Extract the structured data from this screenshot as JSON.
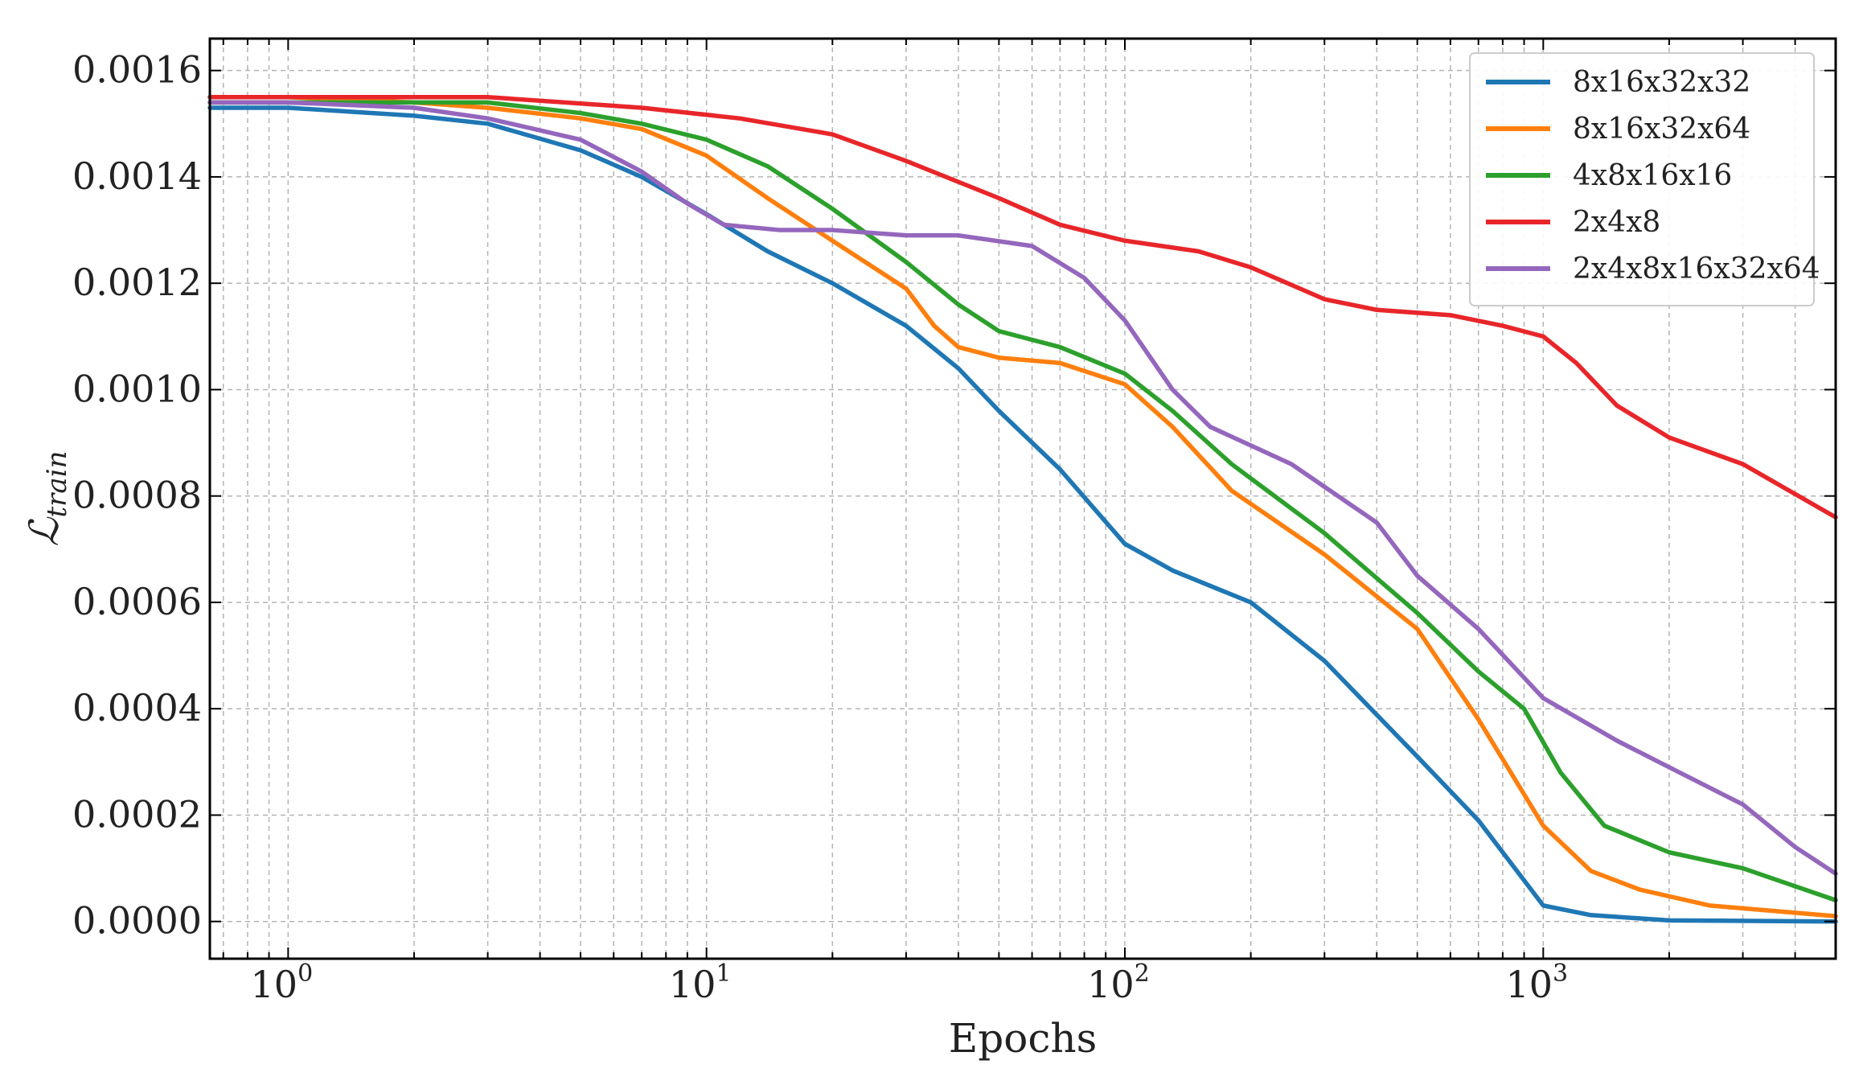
{
  "chart_data": {
    "type": "line",
    "title": "",
    "xlabel": "Epochs",
    "ylabel_main": "ℒ",
    "ylabel_sub": "train",
    "xscale": "log",
    "xlim": [
      0.65,
      5000
    ],
    "ylim": [
      -7e-05,
      0.00166
    ],
    "grid": true,
    "legend_position": "top-right",
    "x_ticks": [
      {
        "value": 1,
        "base": "10",
        "exp": "0"
      },
      {
        "value": 10,
        "base": "10",
        "exp": "1"
      },
      {
        "value": 100,
        "base": "10",
        "exp": "2"
      },
      {
        "value": 1000,
        "base": "10",
        "exp": "3"
      }
    ],
    "y_ticks": [
      {
        "value": 0.0,
        "label": "0.0000"
      },
      {
        "value": 0.0002,
        "label": "0.0002"
      },
      {
        "value": 0.0004,
        "label": "0.0004"
      },
      {
        "value": 0.0006,
        "label": "0.0006"
      },
      {
        "value": 0.0008,
        "label": "0.0008"
      },
      {
        "value": 0.001,
        "label": "0.0010"
      },
      {
        "value": 0.0012,
        "label": "0.0012"
      },
      {
        "value": 0.0014,
        "label": "0.0014"
      },
      {
        "value": 0.0016,
        "label": "0.0016"
      }
    ],
    "series": [
      {
        "name": "8x16x32x32",
        "color": "#1f77b4",
        "points": [
          [
            0.65,
            0.00153
          ],
          [
            1,
            0.00153
          ],
          [
            2,
            0.001515
          ],
          [
            3,
            0.0015
          ],
          [
            5,
            0.00145
          ],
          [
            7,
            0.0014
          ],
          [
            10,
            0.00133
          ],
          [
            14,
            0.00126
          ],
          [
            20,
            0.0012
          ],
          [
            30,
            0.00112
          ],
          [
            40,
            0.00104
          ],
          [
            50,
            0.00096
          ],
          [
            70,
            0.00085
          ],
          [
            100,
            0.00071
          ],
          [
            130,
            0.00066
          ],
          [
            200,
            0.0006
          ],
          [
            300,
            0.00049
          ],
          [
            500,
            0.00031
          ],
          [
            700,
            0.00019
          ],
          [
            1000,
            3e-05
          ],
          [
            1300,
            1.2e-05
          ],
          [
            2000,
            2e-06
          ],
          [
            5000,
            0.0
          ]
        ]
      },
      {
        "name": "8x16x32x64",
        "color": "#ff7f0e",
        "points": [
          [
            0.65,
            0.00155
          ],
          [
            1,
            0.00155
          ],
          [
            2,
            0.00154
          ],
          [
            3,
            0.00153
          ],
          [
            5,
            0.00151
          ],
          [
            7,
            0.00149
          ],
          [
            10,
            0.00144
          ],
          [
            14,
            0.00136
          ],
          [
            20,
            0.00128
          ],
          [
            30,
            0.00119
          ],
          [
            35,
            0.00112
          ],
          [
            40,
            0.00108
          ],
          [
            50,
            0.00106
          ],
          [
            70,
            0.00105
          ],
          [
            100,
            0.00101
          ],
          [
            130,
            0.00093
          ],
          [
            180,
            0.00081
          ],
          [
            300,
            0.00069
          ],
          [
            500,
            0.00055
          ],
          [
            700,
            0.00038
          ],
          [
            1000,
            0.00018
          ],
          [
            1300,
            9.5e-05
          ],
          [
            1700,
            6e-05
          ],
          [
            2500,
            3e-05
          ],
          [
            5000,
            1e-05
          ]
        ]
      },
      {
        "name": "4x8x16x16",
        "color": "#2ca02c",
        "points": [
          [
            0.65,
            0.00154
          ],
          [
            1,
            0.00154
          ],
          [
            2,
            0.00154
          ],
          [
            3,
            0.00154
          ],
          [
            5,
            0.00152
          ],
          [
            7,
            0.0015
          ],
          [
            10,
            0.00147
          ],
          [
            14,
            0.00142
          ],
          [
            20,
            0.00134
          ],
          [
            30,
            0.00124
          ],
          [
            40,
            0.00116
          ],
          [
            50,
            0.00111
          ],
          [
            70,
            0.00108
          ],
          [
            100,
            0.00103
          ],
          [
            130,
            0.00096
          ],
          [
            180,
            0.00086
          ],
          [
            300,
            0.00073
          ],
          [
            500,
            0.00058
          ],
          [
            700,
            0.00047
          ],
          [
            900,
            0.0004
          ],
          [
            1100,
            0.00028
          ],
          [
            1400,
            0.00018
          ],
          [
            2000,
            0.00013
          ],
          [
            3000,
            0.0001
          ],
          [
            5000,
            4e-05
          ]
        ]
      },
      {
        "name": "2x4x8",
        "color": "#e8262a",
        "points": [
          [
            0.65,
            0.00155
          ],
          [
            1,
            0.00155
          ],
          [
            3,
            0.00155
          ],
          [
            7,
            0.00153
          ],
          [
            12,
            0.00151
          ],
          [
            20,
            0.00148
          ],
          [
            30,
            0.00143
          ],
          [
            50,
            0.00136
          ],
          [
            70,
            0.00131
          ],
          [
            100,
            0.00128
          ],
          [
            150,
            0.00126
          ],
          [
            200,
            0.00123
          ],
          [
            300,
            0.00117
          ],
          [
            400,
            0.00115
          ],
          [
            600,
            0.00114
          ],
          [
            800,
            0.00112
          ],
          [
            1000,
            0.0011
          ],
          [
            1200,
            0.00105
          ],
          [
            1500,
            0.00097
          ],
          [
            2000,
            0.00091
          ],
          [
            3000,
            0.00086
          ],
          [
            5000,
            0.00076
          ]
        ]
      },
      {
        "name": "2x4x8x16x32x64",
        "color": "#9467bd",
        "points": [
          [
            0.65,
            0.00154
          ],
          [
            1,
            0.00154
          ],
          [
            2,
            0.00153
          ],
          [
            3,
            0.00151
          ],
          [
            5,
            0.00147
          ],
          [
            7,
            0.00141
          ],
          [
            9,
            0.00135
          ],
          [
            11,
            0.00131
          ],
          [
            15,
            0.0013
          ],
          [
            20,
            0.0013
          ],
          [
            30,
            0.00129
          ],
          [
            40,
            0.00129
          ],
          [
            60,
            0.00127
          ],
          [
            80,
            0.00121
          ],
          [
            100,
            0.00113
          ],
          [
            130,
            0.001
          ],
          [
            160,
            0.00093
          ],
          [
            250,
            0.00086
          ],
          [
            400,
            0.00075
          ],
          [
            500,
            0.00065
          ],
          [
            700,
            0.00055
          ],
          [
            1000,
            0.00042
          ],
          [
            1500,
            0.00034
          ],
          [
            2000,
            0.00029
          ],
          [
            3000,
            0.00022
          ],
          [
            4000,
            0.00014
          ],
          [
            5000,
            9e-05
          ]
        ]
      }
    ]
  }
}
